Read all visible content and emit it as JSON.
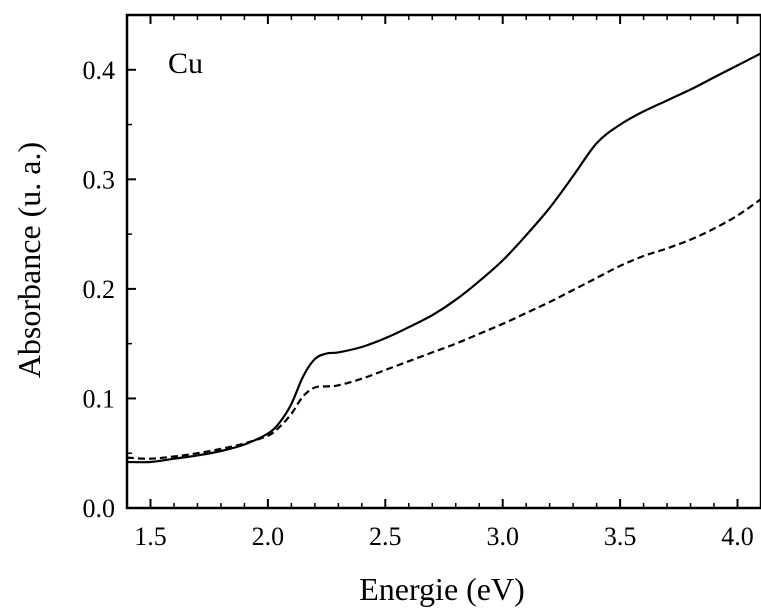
{
  "chart_data": {
    "type": "line",
    "title": "",
    "annotation": "Cu",
    "xlabel": "Energie  (eV)",
    "ylabel": "Absorbance  (u. a.)",
    "xlim": [
      1.4,
      4.1
    ],
    "ylim": [
      0.0,
      0.45
    ],
    "grid": false,
    "x_ticks": [
      1.5,
      2.0,
      2.5,
      3.0,
      3.5,
      4.0
    ],
    "x_tick_labels": [
      "1.5",
      "2.0",
      "2.5",
      "3.0",
      "3.5",
      "4.0"
    ],
    "y_ticks": [
      0.0,
      0.1,
      0.2,
      0.3,
      0.4
    ],
    "y_tick_labels": [
      "0.0",
      "0.1",
      "0.2",
      "0.3",
      "0.4"
    ],
    "series": [
      {
        "style": "solid",
        "color": "#000000",
        "x": [
          1.4,
          1.5,
          1.6,
          1.7,
          1.8,
          1.9,
          2.0,
          2.05,
          2.1,
          2.15,
          2.2,
          2.25,
          2.3,
          2.4,
          2.5,
          2.6,
          2.7,
          2.8,
          2.9,
          3.0,
          3.1,
          3.2,
          3.3,
          3.4,
          3.5,
          3.6,
          3.7,
          3.8,
          3.9,
          4.0,
          4.1
        ],
        "y": [
          0.042,
          0.042,
          0.045,
          0.048,
          0.052,
          0.058,
          0.068,
          0.078,
          0.095,
          0.12,
          0.136,
          0.141,
          0.142,
          0.147,
          0.155,
          0.165,
          0.176,
          0.19,
          0.207,
          0.226,
          0.249,
          0.274,
          0.303,
          0.333,
          0.35,
          0.362,
          0.372,
          0.382,
          0.393,
          0.404,
          0.415
        ]
      },
      {
        "style": "dashed",
        "color": "#000000",
        "x": [
          1.4,
          1.5,
          1.6,
          1.7,
          1.8,
          1.9,
          2.0,
          2.05,
          2.1,
          2.15,
          2.2,
          2.25,
          2.3,
          2.4,
          2.5,
          2.6,
          2.7,
          2.8,
          2.9,
          3.0,
          3.1,
          3.2,
          3.3,
          3.4,
          3.5,
          3.6,
          3.7,
          3.8,
          3.9,
          4.0,
          4.1
        ],
        "y": [
          0.046,
          0.045,
          0.047,
          0.05,
          0.054,
          0.059,
          0.066,
          0.074,
          0.086,
          0.102,
          0.11,
          0.111,
          0.112,
          0.118,
          0.126,
          0.134,
          0.142,
          0.15,
          0.159,
          0.168,
          0.178,
          0.188,
          0.199,
          0.21,
          0.221,
          0.23,
          0.237,
          0.245,
          0.255,
          0.267,
          0.282
        ]
      }
    ]
  }
}
